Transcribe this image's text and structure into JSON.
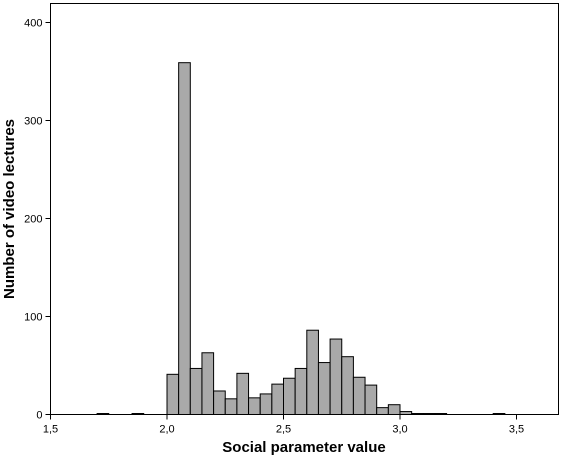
{
  "chart_data": {
    "type": "bar",
    "subtype": "histogram",
    "xlabel": "Social parameter value",
    "ylabel": "Number of video lectures",
    "xlim": [
      1.5,
      3.65
    ],
    "ylim": [
      0,
      420
    ],
    "x_ticks": [
      1.5,
      2.0,
      2.5,
      3.0,
      3.5
    ],
    "x_tick_labels": [
      "1,5",
      "2,0",
      "2,5",
      "3,0",
      "3,5"
    ],
    "y_ticks": [
      0,
      100,
      200,
      300,
      400
    ],
    "y_tick_labels": [
      "0",
      "100",
      "200",
      "300",
      "400"
    ],
    "bin_width": 0.05,
    "bins": [
      {
        "x0": 1.7,
        "x1": 1.75,
        "value": 1
      },
      {
        "x0": 1.85,
        "x1": 1.9,
        "value": 1
      },
      {
        "x0": 2.0,
        "x1": 2.05,
        "value": 41
      },
      {
        "x0": 2.05,
        "x1": 2.1,
        "value": 359
      },
      {
        "x0": 2.1,
        "x1": 2.15,
        "value": 47
      },
      {
        "x0": 2.15,
        "x1": 2.2,
        "value": 63
      },
      {
        "x0": 2.2,
        "x1": 2.25,
        "value": 24
      },
      {
        "x0": 2.25,
        "x1": 2.3,
        "value": 16
      },
      {
        "x0": 2.3,
        "x1": 2.35,
        "value": 42
      },
      {
        "x0": 2.35,
        "x1": 2.4,
        "value": 17
      },
      {
        "x0": 2.4,
        "x1": 2.45,
        "value": 21
      },
      {
        "x0": 2.45,
        "x1": 2.5,
        "value": 31
      },
      {
        "x0": 2.5,
        "x1": 2.55,
        "value": 37
      },
      {
        "x0": 2.55,
        "x1": 2.6,
        "value": 47
      },
      {
        "x0": 2.6,
        "x1": 2.65,
        "value": 86
      },
      {
        "x0": 2.65,
        "x1": 2.7,
        "value": 53
      },
      {
        "x0": 2.7,
        "x1": 2.75,
        "value": 77
      },
      {
        "x0": 2.75,
        "x1": 2.8,
        "value": 59
      },
      {
        "x0": 2.8,
        "x1": 2.85,
        "value": 38
      },
      {
        "x0": 2.85,
        "x1": 2.9,
        "value": 30
      },
      {
        "x0": 2.9,
        "x1": 2.95,
        "value": 7
      },
      {
        "x0": 2.95,
        "x1": 3.0,
        "value": 10
      },
      {
        "x0": 3.0,
        "x1": 3.05,
        "value": 3
      },
      {
        "x0": 3.05,
        "x1": 3.1,
        "value": 1
      },
      {
        "x0": 3.1,
        "x1": 3.15,
        "value": 1
      },
      {
        "x0": 3.15,
        "x1": 3.2,
        "value": 1
      },
      {
        "x0": 3.4,
        "x1": 3.45,
        "value": 1
      }
    ],
    "grid": false,
    "bar_color": "#a9a9a9",
    "edge_color": "#000000"
  }
}
